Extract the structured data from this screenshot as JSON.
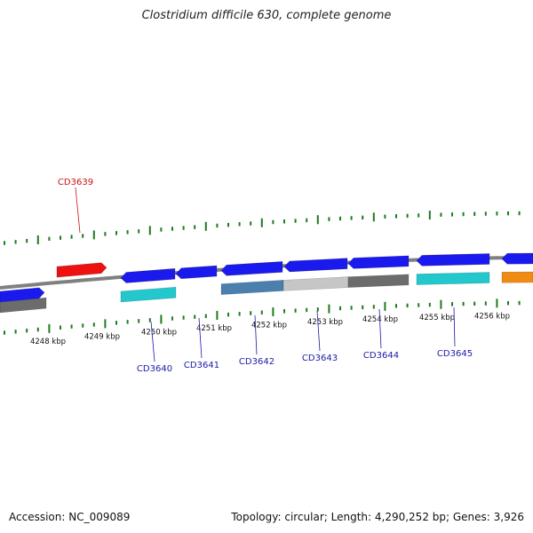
{
  "title": "Clostridium difficile 630, complete genome",
  "footer": {
    "accession": "Accession: NC_009089",
    "summary": "Topology: circular; Length: 4,290,252 bp; Genes: 3,926"
  },
  "colors": {
    "backbone": "#808080",
    "tick": "#1f7a1f",
    "forward_gene": "#1a1aee",
    "highlight_gene": "#ee1111",
    "feature_cyan": "#22c8cc",
    "feature_steel": "#4a7fae",
    "feature_lightgray": "#c6c6c6",
    "feature_darkgray": "#6c6c6c",
    "feature_orange": "#f08c14",
    "label_blue": "#1a1aa8",
    "label_red": "#cc1111"
  },
  "tick_labels": [
    "4248 kbp",
    "4249 kbp",
    "4250 kbp",
    "4251 kbp",
    "4252 kbp",
    "4253 kbp",
    "4254 kbp",
    "4255 kbp",
    "4256 kbp"
  ],
  "gene_labels": [
    "CD3639",
    "CD3640",
    "CD3641",
    "CD3642",
    "CD3643",
    "CD3644",
    "CD3645"
  ]
}
